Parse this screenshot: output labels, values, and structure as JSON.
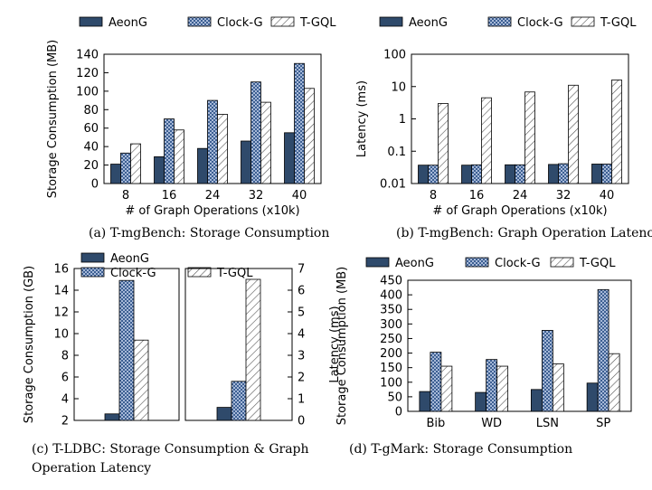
{
  "styles": {
    "AeonG": {
      "fill": "#2f4a6b"
    },
    "Clock-G": {
      "fill": "#a7b9d8",
      "pattern": "checker"
    },
    "T-GQL": {
      "fill": "#ffffff",
      "pattern": "hatch"
    }
  },
  "chart_data": [
    {
      "id": "a",
      "type": "bar",
      "caption": "(a)  T-mgBench: Storage Consumption",
      "xlabel": "# of Graph Operations (x10k)",
      "ylabel": "Storage Consumption (MB)",
      "categories": [
        "8",
        "16",
        "24",
        "32",
        "40"
      ],
      "ylim": [
        0,
        140
      ],
      "yticks": [
        0,
        20,
        40,
        60,
        80,
        100,
        120,
        140
      ],
      "legend": [
        "AeonG",
        "Clock-G",
        "T-GQL"
      ],
      "series": [
        {
          "name": "AeonG",
          "values": [
            21,
            29,
            38,
            46,
            55
          ]
        },
        {
          "name": "Clock-G",
          "values": [
            33,
            70,
            90,
            110,
            130
          ]
        },
        {
          "name": "T-GQL",
          "values": [
            43,
            58,
            75,
            88,
            103
          ]
        }
      ]
    },
    {
      "id": "b",
      "type": "bar",
      "caption": "(b)  T-mgBench: Graph Operation Latency",
      "xlabel": "# of Graph Operations (x10k)",
      "ylabel": "Latency (ms)",
      "yscale": "log",
      "categories": [
        "8",
        "16",
        "24",
        "32",
        "40"
      ],
      "ylim": [
        0.01,
        100
      ],
      "yticks": [
        "0.01",
        "0.1",
        "1",
        "10",
        "100"
      ],
      "legend": [
        "AeonG",
        "Clock-G",
        "T-GQL"
      ],
      "series": [
        {
          "name": "AeonG",
          "values": [
            0.037,
            0.037,
            0.038,
            0.039,
            0.04
          ]
        },
        {
          "name": "Clock-G",
          "values": [
            0.037,
            0.038,
            0.038,
            0.041,
            0.04
          ]
        },
        {
          "name": "T-GQL",
          "values": [
            3,
            4.5,
            6.8,
            11,
            16
          ]
        }
      ]
    },
    {
      "id": "c1",
      "type": "bar",
      "caption": "(c)  T-LDBC: Storage Consumption & Graph",
      "caption_line2": "Operation Latency",
      "ylabel": "Storage Consumption (GB)",
      "ylim": [
        2,
        16
      ],
      "yticks": [
        2,
        4,
        6,
        8,
        10,
        12,
        14,
        16
      ],
      "legend": [
        "AeonG",
        "Clock-G",
        "T-GQL"
      ],
      "series": [
        {
          "name": "AeonG",
          "values": [
            2.6
          ]
        },
        {
          "name": "Clock-G",
          "values": [
            14.9
          ]
        },
        {
          "name": "T-GQL",
          "values": [
            9.4
          ]
        }
      ]
    },
    {
      "id": "c2",
      "type": "bar",
      "ylabel": "Latency (ms)",
      "ylim": [
        0,
        7
      ],
      "yticks": [
        0,
        1,
        2,
        3,
        4,
        5,
        6,
        7
      ],
      "series": [
        {
          "name": "AeonG",
          "values": [
            0.6
          ]
        },
        {
          "name": "Clock-G",
          "values": [
            1.8
          ]
        },
        {
          "name": "T-GQL",
          "values": [
            6.5
          ]
        }
      ]
    },
    {
      "id": "d",
      "type": "bar",
      "caption": "(d)  T-gMark: Storage Consumption",
      "ylabel": "Storage Consumption (MB)",
      "categories": [
        "Bib",
        "WD",
        "LSN",
        "SP"
      ],
      "ylim": [
        0,
        450
      ],
      "yticks": [
        0,
        50,
        100,
        150,
        200,
        250,
        300,
        350,
        400,
        450
      ],
      "legend": [
        "AeonG",
        "Clock-G",
        "T-GQL"
      ],
      "series": [
        {
          "name": "AeonG",
          "values": [
            68,
            65,
            75,
            97
          ]
        },
        {
          "name": "Clock-G",
          "values": [
            203,
            178,
            278,
            418
          ]
        },
        {
          "name": "T-GQL",
          "values": [
            155,
            155,
            163,
            198
          ]
        }
      ]
    }
  ]
}
